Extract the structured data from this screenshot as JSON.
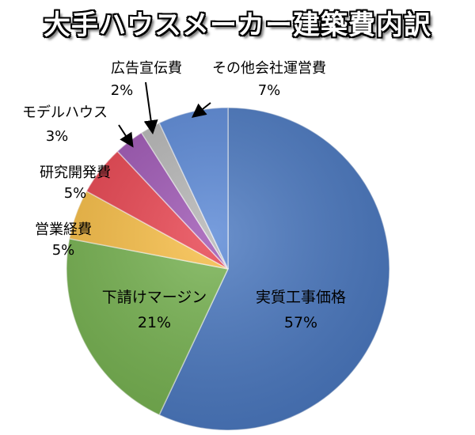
{
  "chart_data": {
    "type": "pie",
    "title": "大手ハウスメーカー建築費内訳",
    "slices": [
      {
        "label": "実質工事価格",
        "value": 57,
        "value_label": "57%",
        "color": "#4a78c0"
      },
      {
        "label": "下請けマージン",
        "value": 21,
        "value_label": "21%",
        "color": "#76b250"
      },
      {
        "label": "営業経費",
        "value": 5,
        "value_label": "5%",
        "color": "#f7bd45"
      },
      {
        "label": "研究開発費",
        "value": 5,
        "value_label": "5%",
        "color": "#e8434f"
      },
      {
        "label": "モデルハウス",
        "value": 3,
        "value_label": "3%",
        "color": "#9d55b3"
      },
      {
        "label": "広告宣伝費",
        "value": 2,
        "value_label": "2%",
        "color": "#b5b5b5"
      },
      {
        "label": "その他会社運営費",
        "value": 7,
        "value_label": "7%",
        "color": "#5a88d6"
      }
    ],
    "start_angle_deg": 0,
    "direction": "clockwise"
  }
}
